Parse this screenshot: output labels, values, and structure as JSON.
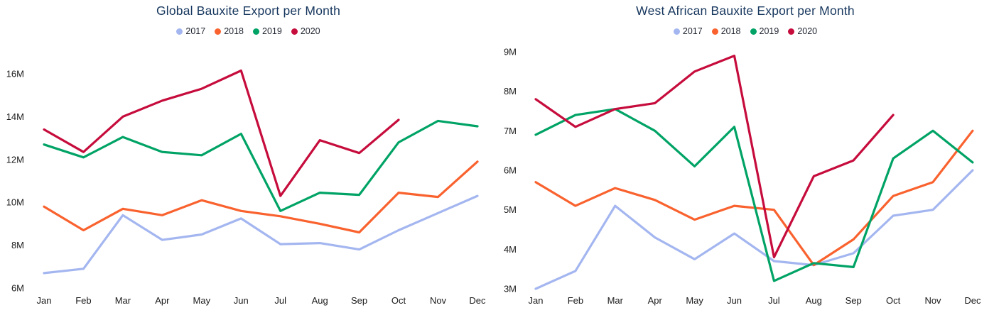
{
  "page": {
    "background": "#ffffff"
  },
  "charts": [
    {
      "title": "Global Bauxite Export per Month",
      "legend": [
        {
          "label": "2017",
          "color": "#a4b6f0"
        },
        {
          "label": "2018",
          "color": "#f9622e"
        },
        {
          "label": "2019",
          "color": "#00a365"
        },
        {
          "label": "2020",
          "color": "#c60c3c"
        }
      ],
      "chart_data": {
        "type": "line",
        "title": "Global Bauxite Export per Month",
        "categories": [
          "Jan",
          "Feb",
          "Mar",
          "Apr",
          "May",
          "Jun",
          "Jul",
          "Aug",
          "Sep",
          "Oct",
          "Nov",
          "Dec"
        ],
        "y_tick_labels": [
          "6M",
          "8M",
          "10M",
          "12M",
          "14M",
          "16M"
        ],
        "ylim_millions": [
          6,
          16
        ],
        "unit": "M",
        "grid": false,
        "legend_position": "top-center",
        "series": [
          {
            "name": "2017",
            "color": "#a4b6f0",
            "values_millions": [
              6.7,
              6.9,
              9.4,
              8.25,
              8.5,
              9.25,
              8.05,
              8.1,
              7.8,
              8.7,
              9.5,
              10.3
            ]
          },
          {
            "name": "2018",
            "color": "#f9622e",
            "values_millions": [
              9.8,
              8.7,
              9.7,
              9.4,
              10.1,
              9.6,
              9.35,
              9.0,
              8.6,
              10.45,
              10.25,
              11.9
            ]
          },
          {
            "name": "2019",
            "color": "#00a365",
            "values_millions": [
              12.7,
              12.1,
              13.05,
              12.35,
              12.2,
              13.2,
              9.6,
              10.45,
              10.35,
              12.8,
              13.8,
              13.55
            ]
          },
          {
            "name": "2020",
            "color": "#c60c3c",
            "values_millions": [
              13.4,
              12.35,
              14.0,
              14.75,
              15.3,
              16.15,
              10.3,
              12.9,
              12.3,
              13.85,
              null,
              null
            ]
          }
        ]
      }
    },
    {
      "title": "West African Bauxite Export per Month",
      "legend": [
        {
          "label": "2017",
          "color": "#a4b6f0"
        },
        {
          "label": "2018",
          "color": "#f9622e"
        },
        {
          "label": "2019",
          "color": "#00a365"
        },
        {
          "label": "2020",
          "color": "#c60c3c"
        }
      ],
      "chart_data": {
        "type": "line",
        "title": "West African Bauxite Export per Month",
        "categories": [
          "Jan",
          "Feb",
          "Mar",
          "Apr",
          "May",
          "Jun",
          "Jul",
          "Aug",
          "Sep",
          "Oct",
          "Nov",
          "Dec"
        ],
        "y_tick_labels": [
          "3M",
          "4M",
          "5M",
          "6M",
          "7M",
          "8M",
          "9M"
        ],
        "ylim_millions": [
          3,
          9
        ],
        "unit": "M",
        "grid": false,
        "legend_position": "top-center",
        "series": [
          {
            "name": "2017",
            "color": "#a4b6f0",
            "values_millions": [
              3.0,
              3.45,
              5.1,
              4.3,
              3.75,
              4.4,
              3.7,
              3.6,
              3.9,
              4.85,
              5.0,
              6.0
            ]
          },
          {
            "name": "2018",
            "color": "#f9622e",
            "values_millions": [
              5.7,
              5.1,
              5.55,
              5.25,
              4.75,
              5.1,
              5.0,
              3.6,
              4.25,
              5.35,
              5.7,
              7.0
            ]
          },
          {
            "name": "2019",
            "color": "#00a365",
            "values_millions": [
              6.9,
              7.4,
              7.55,
              7.0,
              6.1,
              7.1,
              3.2,
              3.65,
              3.55,
              6.3,
              7.0,
              6.2
            ]
          },
          {
            "name": "2020",
            "color": "#c60c3c",
            "values_millions": [
              7.8,
              7.1,
              7.55,
              7.7,
              8.5,
              8.9,
              3.8,
              5.85,
              6.25,
              7.4,
              null,
              null
            ]
          }
        ]
      }
    }
  ]
}
